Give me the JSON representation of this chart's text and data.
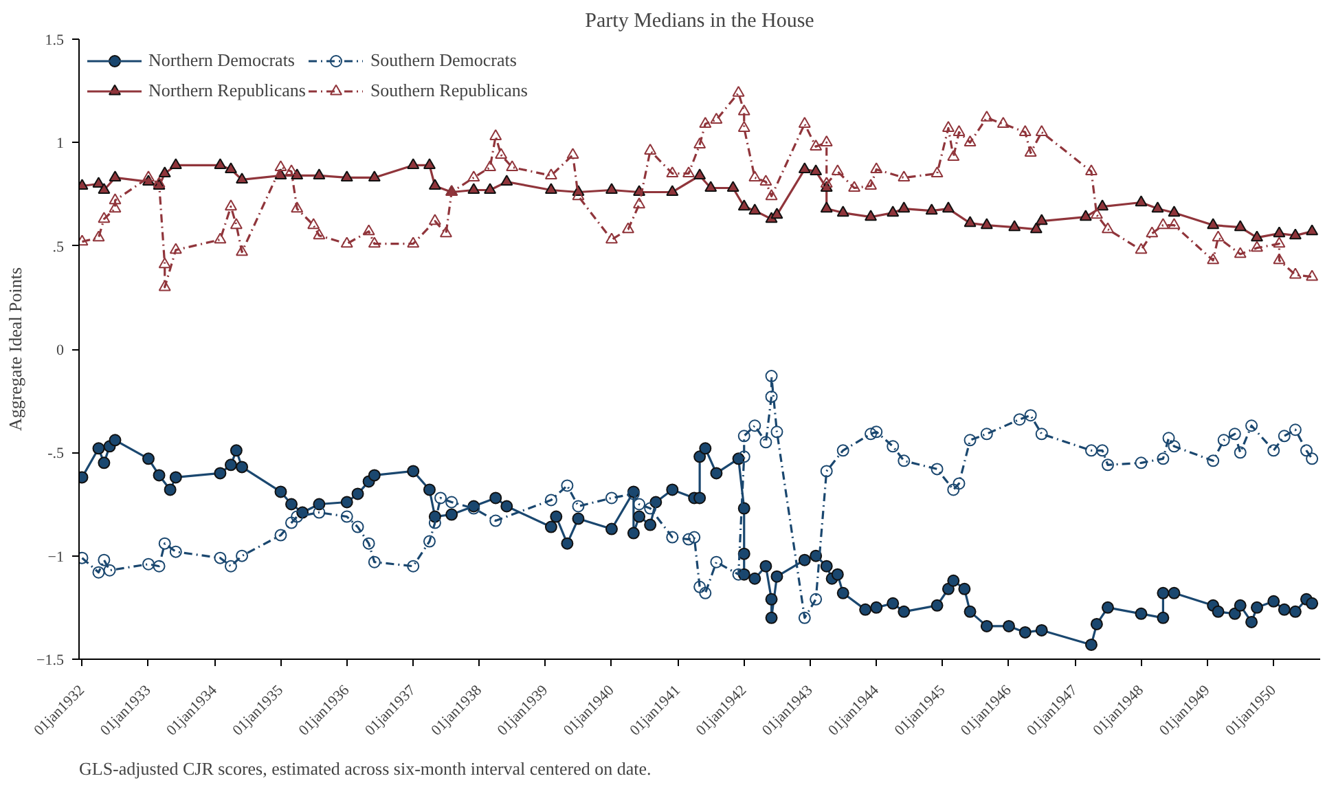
{
  "chart_data": {
    "type": "line",
    "title": "Party Medians in the House",
    "ylabel": "Aggregate Ideal Points",
    "annotations": [
      "GLS-adjusted CJR scores, estimated across six-month interval centered on date."
    ],
    "xlim": [
      "1931-12-15",
      "1950-09-15"
    ],
    "xticks": [
      {
        "value": "1932-01-01",
        "label": "01jan1932"
      },
      {
        "value": "1933-01-01",
        "label": "01jan1933"
      },
      {
        "value": "1934-01-01",
        "label": "01jan1934"
      },
      {
        "value": "1935-01-01",
        "label": "01jan1935"
      },
      {
        "value": "1936-01-01",
        "label": "01jan1936"
      },
      {
        "value": "1937-01-01",
        "label": "01jan1937"
      },
      {
        "value": "1938-01-01",
        "label": "01jan1938"
      },
      {
        "value": "1939-01-01",
        "label": "01jan1939"
      },
      {
        "value": "1940-01-01",
        "label": "01jan1940"
      },
      {
        "value": "1941-01-01",
        "label": "01jan1941"
      },
      {
        "value": "1942-01-01",
        "label": "01jan1942"
      },
      {
        "value": "1943-01-01",
        "label": "01jan1943"
      },
      {
        "value": "1944-01-01",
        "label": "01jan1944"
      },
      {
        "value": "1945-01-01",
        "label": "01jan1945"
      },
      {
        "value": "1946-01-01",
        "label": "01jan1946"
      },
      {
        "value": "1947-01-01",
        "label": "01jan1947"
      },
      {
        "value": "1948-01-01",
        "label": "01jan1948"
      },
      {
        "value": "1949-01-01",
        "label": "01jan1949"
      },
      {
        "value": "1950-01-01",
        "label": "01jan1950"
      }
    ],
    "ylim": [
      -1.5,
      1.5
    ],
    "yticks": [
      -1.5,
      -1,
      {
        "value": -0.5,
        "label": "-.5"
      },
      0,
      {
        "value": 0.5,
        "label": ".5"
      },
      1,
      1.5
    ],
    "grid": false,
    "legend": "top left",
    "series": [
      {
        "name": "Northern Democrats",
        "color": "#1a476f",
        "marker": "circle",
        "line_style": "solid",
        "x": [
          "1932-01",
          "1932-04",
          "1932-05",
          "1932-06",
          "1932-07",
          "1933-01",
          "1933-03",
          "1933-05",
          "1933-06",
          "1934-02",
          "1934-04",
          "1934-05",
          "1934-06",
          "1935-01",
          "1935-03",
          "1935-05",
          "1935-08",
          "1936-01",
          "1936-03",
          "1936-05",
          "1936-06",
          "1937-01",
          "1937-04",
          "1937-05",
          "1937-08",
          "1937-12",
          "1938-04",
          "1938-06",
          "1939-02",
          "1939-03",
          "1939-05",
          "1939-07",
          "1940-01",
          "1940-05",
          "1940-05",
          "1940-06",
          "1940-08",
          "1940-09",
          "1940-12",
          "1941-04",
          "1941-05",
          "1941-05",
          "1941-06",
          "1941-08",
          "1941-12",
          "1942-01",
          "1942-01",
          "1942-01",
          "1942-03",
          "1942-05",
          "1942-06",
          "1942-06",
          "1942-07",
          "1942-12",
          "1943-02",
          "1943-04",
          "1943-05",
          "1943-06",
          "1943-07",
          "1943-11",
          "1944-01",
          "1944-04",
          "1944-06",
          "1944-12",
          "1945-02",
          "1945-03",
          "1945-05",
          "1945-06",
          "1945-09",
          "1946-01",
          "1946-04",
          "1946-07",
          "1947-04",
          "1947-05",
          "1947-07",
          "1948-01",
          "1948-05",
          "1948-05",
          "1948-07",
          "1949-02",
          "1949-03",
          "1949-06",
          "1949-07",
          "1949-09",
          "1949-10",
          "1950-01",
          "1950-03",
          "1950-05",
          "1950-07",
          "1950-08"
        ],
        "values": [
          -0.62,
          -0.48,
          -0.55,
          -0.47,
          -0.44,
          -0.53,
          -0.61,
          -0.68,
          -0.62,
          -0.6,
          -0.56,
          -0.49,
          -0.57,
          -0.69,
          -0.75,
          -0.79,
          -0.75,
          -0.74,
          -0.7,
          -0.64,
          -0.61,
          -0.59,
          -0.68,
          -0.81,
          -0.8,
          -0.76,
          -0.72,
          -0.76,
          -0.86,
          -0.81,
          -0.94,
          -0.82,
          -0.87,
          -0.69,
          -0.89,
          -0.81,
          -0.85,
          -0.74,
          -0.68,
          -0.72,
          -0.72,
          -0.52,
          -0.48,
          -0.6,
          -0.53,
          -0.77,
          -0.99,
          -1.09,
          -1.11,
          -1.05,
          -1.21,
          -1.3,
          -1.1,
          -1.02,
          -1.0,
          -1.05,
          -1.11,
          -1.09,
          -1.18,
          -1.26,
          -1.25,
          -1.23,
          -1.27,
          -1.24,
          -1.16,
          -1.12,
          -1.16,
          -1.27,
          -1.34,
          -1.34,
          -1.37,
          -1.36,
          -1.43,
          -1.33,
          -1.25,
          -1.28,
          -1.3,
          -1.18,
          -1.18,
          -1.24,
          -1.27,
          -1.28,
          -1.24,
          -1.32,
          -1.25,
          -1.22,
          -1.26,
          -1.27,
          -1.21,
          -1.23
        ]
      },
      {
        "name": "Southern Democrats",
        "color": "#1a476f",
        "marker": "circle",
        "line_style": "dashed",
        "x": [
          "1932-01",
          "1932-04",
          "1932-05",
          "1932-06",
          "1933-01",
          "1933-03",
          "1933-04",
          "1933-06",
          "1934-02",
          "1934-04",
          "1934-06",
          "1935-01",
          "1935-03",
          "1935-04",
          "1935-08",
          "1936-01",
          "1936-03",
          "1936-05",
          "1936-06",
          "1937-01",
          "1937-04",
          "1937-05",
          "1937-06",
          "1937-08",
          "1937-12",
          "1938-04",
          "1939-02",
          "1939-05",
          "1939-07",
          "1940-01",
          "1940-05",
          "1940-06",
          "1940-08",
          "1940-12",
          "1941-03",
          "1941-04",
          "1941-05",
          "1941-06",
          "1941-08",
          "1941-12",
          "1942-01",
          "1942-01",
          "1942-03",
          "1942-05",
          "1942-06",
          "1942-06",
          "1942-07",
          "1942-12",
          "1943-02",
          "1943-04",
          "1943-07",
          "1943-12",
          "1944-01",
          "1944-04",
          "1944-06",
          "1944-12",
          "1945-03",
          "1945-04",
          "1945-06",
          "1945-09",
          "1946-03",
          "1946-05",
          "1946-07",
          "1947-04",
          "1947-06",
          "1947-07",
          "1948-01",
          "1948-05",
          "1948-06",
          "1948-07",
          "1949-02",
          "1949-04",
          "1949-06",
          "1949-07",
          "1949-09",
          "1950-01",
          "1950-03",
          "1950-05",
          "1950-07",
          "1950-08"
        ],
        "values": [
          -1.01,
          -1.08,
          -1.02,
          -1.07,
          -1.04,
          -1.05,
          -0.94,
          -0.98,
          -1.01,
          -1.05,
          -1.0,
          -0.9,
          -0.84,
          -0.81,
          -0.79,
          -0.81,
          -0.86,
          -0.94,
          -1.03,
          -1.05,
          -0.93,
          -0.84,
          -0.72,
          -0.74,
          -0.77,
          -0.83,
          -0.73,
          -0.66,
          -0.76,
          -0.72,
          -0.7,
          -0.75,
          -0.77,
          -0.91,
          -0.92,
          -0.91,
          -1.15,
          -1.18,
          -1.03,
          -1.09,
          -0.52,
          -0.42,
          -0.37,
          -0.45,
          -0.23,
          -0.13,
          -0.4,
          -1.3,
          -1.21,
          -0.59,
          -0.49,
          -0.41,
          -0.4,
          -0.47,
          -0.54,
          -0.58,
          -0.68,
          -0.65,
          -0.44,
          -0.41,
          -0.34,
          -0.32,
          -0.41,
          -0.49,
          -0.49,
          -0.56,
          -0.55,
          -0.53,
          -0.43,
          -0.47,
          -0.54,
          -0.44,
          -0.41,
          -0.5,
          -0.37,
          -0.49,
          -0.42,
          -0.39,
          -0.49,
          -0.53
        ]
      },
      {
        "name": "Northern Republicans",
        "color": "#90353b",
        "marker": "triangle",
        "line_style": "solid",
        "x": [
          "1932-01",
          "1932-04",
          "1932-05",
          "1932-07",
          "1933-01",
          "1933-03",
          "1933-04",
          "1933-06",
          "1934-02",
          "1934-04",
          "1934-06",
          "1935-01",
          "1935-04",
          "1935-08",
          "1936-01",
          "1936-06",
          "1937-01",
          "1937-04",
          "1937-05",
          "1937-08",
          "1937-12",
          "1938-03",
          "1938-06",
          "1939-02",
          "1939-07",
          "1940-01",
          "1940-06",
          "1940-12",
          "1941-05",
          "1941-07",
          "1941-11",
          "1942-01",
          "1942-03",
          "1942-06",
          "1942-07",
          "1942-12",
          "1943-02",
          "1943-04",
          "1943-04",
          "1943-07",
          "1943-12",
          "1944-04",
          "1944-06",
          "1944-11",
          "1945-02",
          "1945-06",
          "1945-09",
          "1946-02",
          "1946-06",
          "1946-07",
          "1947-03",
          "1947-06",
          "1948-01",
          "1948-04",
          "1948-07",
          "1949-02",
          "1949-07",
          "1949-10",
          "1950-02",
          "1950-05",
          "1950-08"
        ],
        "values": [
          0.79,
          0.8,
          0.77,
          0.83,
          0.81,
          0.79,
          0.85,
          0.89,
          0.89,
          0.87,
          0.82,
          0.84,
          0.84,
          0.84,
          0.83,
          0.83,
          0.89,
          0.89,
          0.79,
          0.76,
          0.77,
          0.77,
          0.81,
          0.77,
          0.76,
          0.77,
          0.76,
          0.76,
          0.84,
          0.78,
          0.78,
          0.69,
          0.67,
          0.63,
          0.65,
          0.87,
          0.86,
          0.78,
          0.68,
          0.66,
          0.64,
          0.66,
          0.68,
          0.67,
          0.68,
          0.61,
          0.6,
          0.59,
          0.58,
          0.62,
          0.64,
          0.69,
          0.71,
          0.68,
          0.66,
          0.6,
          0.59,
          0.54,
          0.56,
          0.55,
          0.57
        ]
      },
      {
        "name": "Southern Republicans",
        "color": "#90353b",
        "marker": "triangle",
        "line_style": "dashed",
        "x": [
          "1932-01",
          "1932-04",
          "1932-05",
          "1932-07",
          "1932-07",
          "1933-01",
          "1933-03",
          "1933-04",
          "1933-04",
          "1933-06",
          "1934-02",
          "1934-04",
          "1934-05",
          "1934-06",
          "1935-01",
          "1935-03",
          "1935-04",
          "1935-07",
          "1935-08",
          "1936-01",
          "1936-05",
          "1936-06",
          "1937-01",
          "1937-05",
          "1937-07",
          "1937-08",
          "1937-12",
          "1938-03",
          "1938-04",
          "1938-05",
          "1938-07",
          "1939-02",
          "1939-06",
          "1939-07",
          "1940-01",
          "1940-04",
          "1940-06",
          "1940-08",
          "1940-12",
          "1941-03",
          "1941-05",
          "1941-06",
          "1941-08",
          "1941-12",
          "1942-01",
          "1942-01",
          "1942-03",
          "1942-05",
          "1942-06",
          "1942-12",
          "1943-02",
          "1943-04",
          "1943-04",
          "1943-06",
          "1943-09",
          "1943-12",
          "1944-01",
          "1944-06",
          "1944-12",
          "1945-02",
          "1945-03",
          "1945-04",
          "1945-06",
          "1945-09",
          "1945-12",
          "1946-04",
          "1946-05",
          "1946-07",
          "1947-04",
          "1947-05",
          "1947-07",
          "1948-01",
          "1948-03",
          "1948-05",
          "1948-07",
          "1949-02",
          "1949-03",
          "1949-07",
          "1949-10",
          "1950-02",
          "1950-02",
          "1950-05",
          "1950-08"
        ],
        "values": [
          0.52,
          0.54,
          0.63,
          0.68,
          0.72,
          0.83,
          0.8,
          0.41,
          0.3,
          0.48,
          0.53,
          0.69,
          0.6,
          0.47,
          0.88,
          0.86,
          0.68,
          0.6,
          0.55,
          0.51,
          0.57,
          0.51,
          0.51,
          0.62,
          0.56,
          0.76,
          0.83,
          0.88,
          1.03,
          0.94,
          0.88,
          0.84,
          0.94,
          0.74,
          0.53,
          0.58,
          0.7,
          0.96,
          0.85,
          0.85,
          0.99,
          1.09,
          1.11,
          1.24,
          1.15,
          1.07,
          0.83,
          0.81,
          0.74,
          1.09,
          0.98,
          1.0,
          0.8,
          0.86,
          0.78,
          0.79,
          0.87,
          0.83,
          0.85,
          1.07,
          0.93,
          1.05,
          1.0,
          1.12,
          1.09,
          1.05,
          0.95,
          1.05,
          0.86,
          0.65,
          0.58,
          0.48,
          0.56,
          0.6,
          0.6,
          0.43,
          0.54,
          0.46,
          0.49,
          0.51,
          0.43,
          0.36,
          0.35
        ]
      }
    ]
  }
}
